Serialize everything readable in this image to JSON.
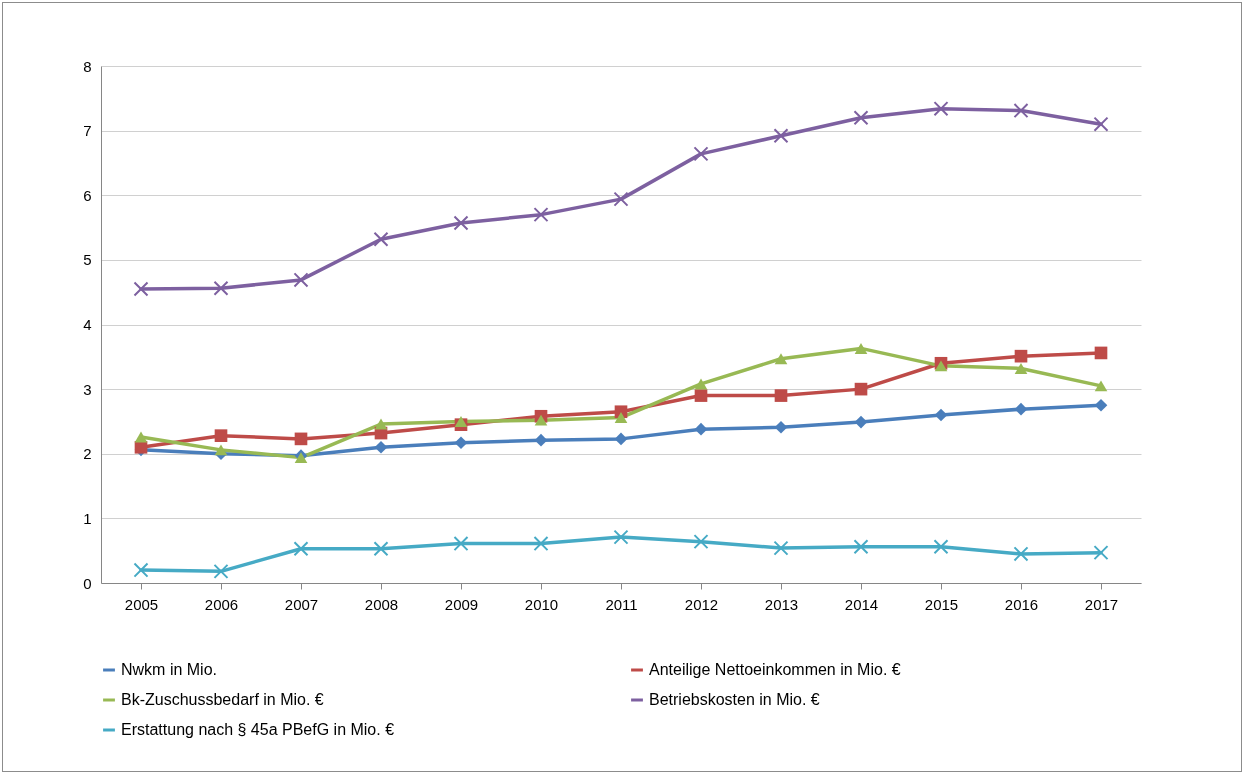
{
  "chart_data": {
    "type": "line",
    "categories": [
      "2005",
      "2006",
      "2007",
      "2008",
      "2009",
      "2010",
      "2011",
      "2012",
      "2013",
      "2014",
      "2015",
      "2016",
      "2017"
    ],
    "ylim": [
      0,
      8
    ],
    "yticks": [
      0,
      1,
      2,
      3,
      4,
      5,
      6,
      7,
      8
    ],
    "grid": "y",
    "legend": "bottom",
    "series": [
      {
        "name": "Nwkm in Mio.",
        "color": "#4a7ebb",
        "marker": "diamond",
        "values": [
          2.06,
          2.0,
          1.97,
          2.1,
          2.17,
          2.21,
          2.23,
          2.38,
          2.41,
          2.49,
          2.6,
          2.69,
          2.75
        ]
      },
      {
        "name": "Anteilige Nettoeinkommen in Mio. €",
        "color": "#be4b48",
        "marker": "square",
        "values": [
          2.1,
          2.28,
          2.23,
          2.32,
          2.45,
          2.58,
          2.65,
          2.9,
          2.9,
          3.0,
          3.4,
          3.51,
          3.56
        ]
      },
      {
        "name": "Bk-Zuschussbedarf in Mio. €",
        "color": "#98b954",
        "marker": "triangle",
        "values": [
          2.26,
          2.06,
          1.94,
          2.46,
          2.5,
          2.52,
          2.56,
          3.08,
          3.47,
          3.63,
          3.36,
          3.32,
          3.05
        ]
      },
      {
        "name": "Betriebskosten in Mio. €",
        "color": "#7d60a0",
        "marker": "cross",
        "values": [
          4.55,
          4.56,
          4.69,
          5.32,
          5.57,
          5.7,
          5.94,
          6.64,
          6.92,
          7.2,
          7.34,
          7.31,
          7.1
        ]
      },
      {
        "name": "Erstattung nach § 45a PBefG in Mio. €",
        "color": "#46aac5",
        "marker": "cross",
        "values": [
          0.2,
          0.18,
          0.53,
          0.53,
          0.61,
          0.61,
          0.71,
          0.64,
          0.54,
          0.56,
          0.56,
          0.45,
          0.47
        ]
      }
    ]
  }
}
